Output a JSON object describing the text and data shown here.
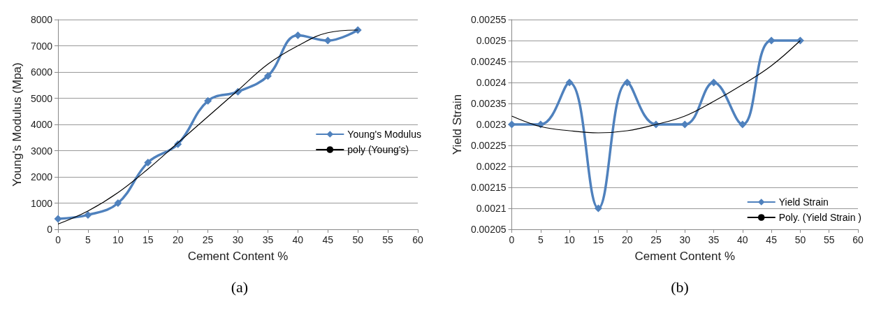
{
  "chart_data": [
    {
      "type": "line",
      "xlabel": "Cement Content %",
      "ylabel": "Young's Modulus (Mpa)",
      "xlim": [
        0,
        60
      ],
      "xticks": [
        0,
        5,
        10,
        15,
        20,
        25,
        30,
        35,
        40,
        45,
        50,
        55,
        60
      ],
      "ylim": [
        0,
        8000
      ],
      "yticks": [
        0,
        1000,
        2000,
        3000,
        4000,
        5000,
        6000,
        7000,
        8000
      ],
      "grid": "y",
      "legend": "right",
      "marker": "diamond",
      "annotations": [
        "(a)"
      ],
      "series": [
        {
          "name": "Young's Modulus",
          "color": "#4f81bd",
          "x": [
            0,
            5,
            10,
            15,
            20,
            25,
            30,
            35,
            40,
            45,
            50
          ],
          "values": [
            400,
            550,
            1000,
            2550,
            3250,
            4900,
            5250,
            5850,
            7400,
            7200,
            7600
          ]
        },
        {
          "name": "poly (Young's)",
          "color": "#000000",
          "marker": "none",
          "x": [
            0,
            5,
            10,
            15,
            20,
            25,
            30,
            35,
            40,
            45,
            50
          ],
          "values": [
            200,
            700,
            1400,
            2300,
            3300,
            4300,
            5300,
            6300,
            7000,
            7500,
            7600
          ]
        }
      ]
    },
    {
      "type": "line",
      "xlabel": "Cement Content %",
      "ylabel": "Yield Strain",
      "xlim": [
        0,
        60
      ],
      "xticks": [
        0,
        5,
        10,
        15,
        20,
        25,
        30,
        35,
        40,
        45,
        50,
        55,
        60
      ],
      "ylim": [
        0.00205,
        0.00255
      ],
      "yticks": [
        0.00205,
        0.0021,
        0.00215,
        0.0022,
        0.00225,
        0.0023,
        0.00235,
        0.0024,
        0.00245,
        0.0025,
        0.00255
      ],
      "grid": "y",
      "legend": "bottom right",
      "marker": "diamond",
      "annotations": [
        "(b)"
      ],
      "series": [
        {
          "name": "Yield Strain",
          "color": "#4f81bd",
          "x": [
            0,
            5,
            10,
            15,
            20,
            25,
            30,
            35,
            40,
            45,
            50
          ],
          "values": [
            0.0023,
            0.0023,
            0.0024,
            0.0021,
            0.0024,
            0.0023,
            0.0023,
            0.0024,
            0.0023,
            0.0025,
            0.0025
          ]
        },
        {
          "name": "Poly. (Yield Strain )",
          "color": "#000000",
          "marker": "none",
          "x": [
            0,
            5,
            10,
            15,
            20,
            25,
            30,
            35,
            40,
            45,
            50
          ],
          "values": [
            0.00232,
            0.002295,
            0.002285,
            0.00228,
            0.002285,
            0.0023,
            0.00232,
            0.002355,
            0.002395,
            0.00244,
            0.0025
          ]
        }
      ]
    }
  ]
}
